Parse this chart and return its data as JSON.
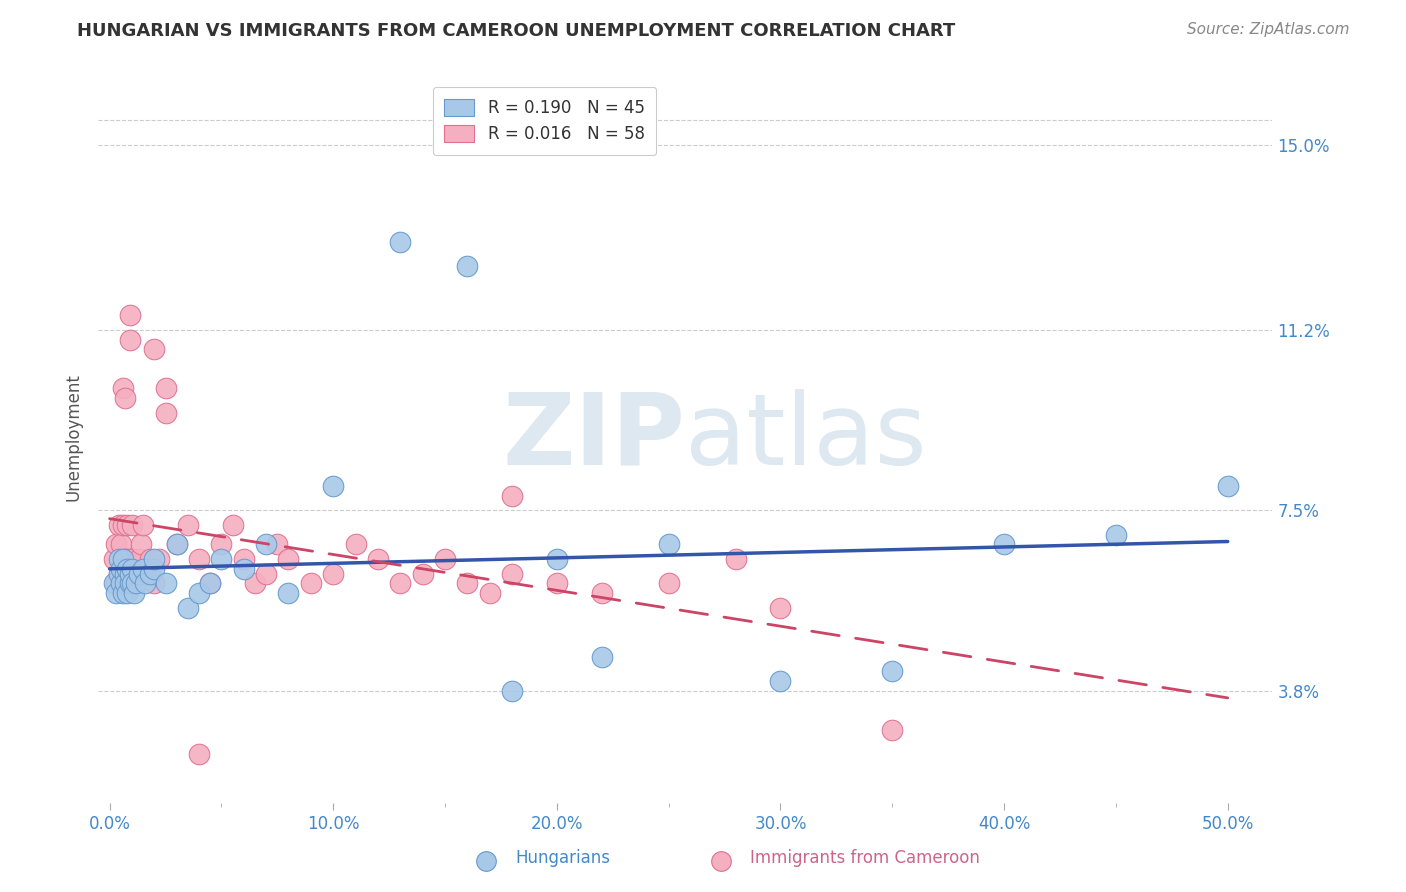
{
  "title": "HUNGARIAN VS IMMIGRANTS FROM CAMEROON UNEMPLOYMENT CORRELATION CHART",
  "source": "Source: ZipAtlas.com",
  "ylabel": "Unemployment",
  "ytick_labels": [
    "3.8%",
    "7.5%",
    "11.2%",
    "15.0%"
  ],
  "ytick_vals": [
    0.038,
    0.075,
    0.112,
    0.15
  ],
  "xlim": [
    -0.005,
    0.52
  ],
  "ylim": [
    0.015,
    0.165
  ],
  "legend1_r": "R = 0.190",
  "legend1_n": "N = 45",
  "legend2_r": "R = 0.016",
  "legend2_n": "N = 58",
  "blue_scatter_color": "#a8c8e8",
  "blue_edge_color": "#6699cc",
  "pink_scatter_color": "#f4b0c0",
  "pink_edge_color": "#e07090",
  "line_blue_color": "#3355aa",
  "line_pink_color": "#cc4466",
  "title_color": "#333333",
  "axis_color": "#4488cc",
  "source_color": "#888888",
  "grid_color": "#cccccc",
  "watermark_color": "#dde8f0",
  "hun_x": [
    0.002,
    0.003,
    0.004,
    0.004,
    0.005,
    0.005,
    0.006,
    0.006,
    0.007,
    0.007,
    0.008,
    0.008,
    0.009,
    0.009,
    0.01,
    0.01,
    0.011,
    0.012,
    0.013,
    0.015,
    0.016,
    0.018,
    0.02,
    0.02,
    0.025,
    0.03,
    0.035,
    0.04,
    0.045,
    0.05,
    0.06,
    0.07,
    0.08,
    0.1,
    0.13,
    0.16,
    0.2,
    0.25,
    0.3,
    0.35,
    0.4,
    0.45,
    0.5,
    0.18,
    0.22
  ],
  "hun_y": [
    0.06,
    0.058,
    0.062,
    0.065,
    0.06,
    0.063,
    0.058,
    0.065,
    0.062,
    0.06,
    0.063,
    0.058,
    0.06,
    0.062,
    0.063,
    0.06,
    0.058,
    0.06,
    0.062,
    0.063,
    0.06,
    0.062,
    0.063,
    0.065,
    0.06,
    0.068,
    0.055,
    0.058,
    0.06,
    0.065,
    0.063,
    0.068,
    0.058,
    0.08,
    0.13,
    0.125,
    0.065,
    0.068,
    0.04,
    0.042,
    0.068,
    0.07,
    0.08,
    0.038,
    0.045
  ],
  "cam_x": [
    0.002,
    0.003,
    0.003,
    0.004,
    0.004,
    0.005,
    0.005,
    0.006,
    0.006,
    0.007,
    0.007,
    0.008,
    0.008,
    0.009,
    0.009,
    0.01,
    0.01,
    0.011,
    0.012,
    0.013,
    0.014,
    0.015,
    0.016,
    0.018,
    0.02,
    0.02,
    0.022,
    0.025,
    0.025,
    0.03,
    0.035,
    0.04,
    0.045,
    0.05,
    0.055,
    0.06,
    0.065,
    0.07,
    0.075,
    0.08,
    0.09,
    0.1,
    0.11,
    0.12,
    0.13,
    0.14,
    0.15,
    0.16,
    0.17,
    0.18,
    0.2,
    0.22,
    0.25,
    0.28,
    0.3,
    0.35,
    0.04,
    0.18
  ],
  "cam_y": [
    0.065,
    0.06,
    0.068,
    0.062,
    0.072,
    0.06,
    0.068,
    0.1,
    0.072,
    0.065,
    0.098,
    0.065,
    0.072,
    0.11,
    0.115,
    0.065,
    0.072,
    0.06,
    0.062,
    0.065,
    0.068,
    0.072,
    0.062,
    0.065,
    0.06,
    0.108,
    0.065,
    0.095,
    0.1,
    0.068,
    0.072,
    0.065,
    0.06,
    0.068,
    0.072,
    0.065,
    0.06,
    0.062,
    0.068,
    0.065,
    0.06,
    0.062,
    0.068,
    0.065,
    0.06,
    0.062,
    0.065,
    0.06,
    0.058,
    0.062,
    0.06,
    0.058,
    0.06,
    0.065,
    0.055,
    0.03,
    0.025,
    0.078
  ]
}
